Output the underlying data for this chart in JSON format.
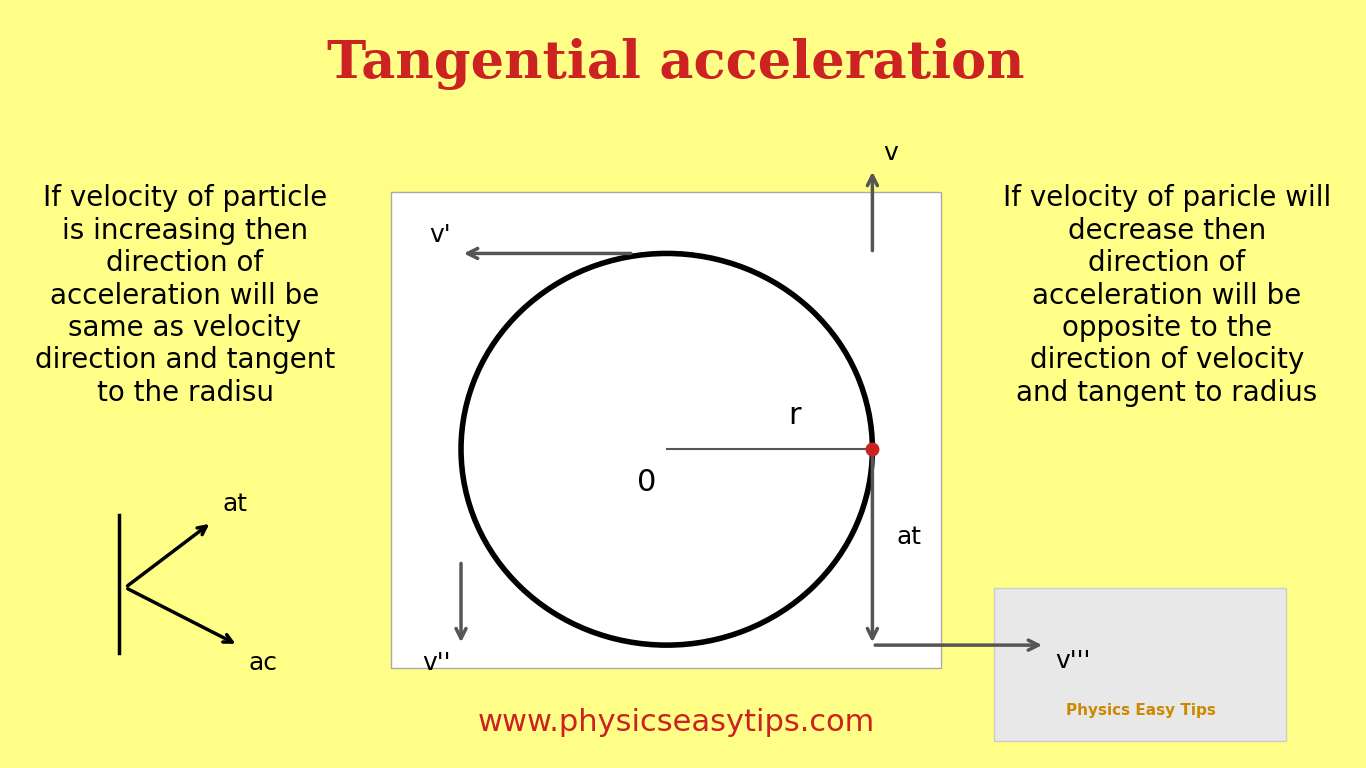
{
  "bg_color": "#FFFF88",
  "title": "Tangential acceleration",
  "title_color": "#CC2222",
  "title_fontsize": 38,
  "website": "www.physicseasytips.com",
  "website_color": "#CC2222",
  "website_fontsize": 22,
  "left_text_lines": [
    "If velocity of particle",
    "is increasing then",
    "direction of",
    "acceleration will be",
    "same as velocity",
    "direction and tangent",
    "to the radisu"
  ],
  "right_text_lines": [
    "If velocity of paricle will",
    "decrease then",
    "direction of",
    "acceleration will be",
    "opposite to the",
    "direction of velocity",
    "and tangent to radius"
  ],
  "text_fontsize": 20,
  "box_color": "white",
  "circle_color": "black",
  "arrow_color": "#555555",
  "radius_label": "r",
  "center_label": "0",
  "red_dot_color": "#CC2222"
}
